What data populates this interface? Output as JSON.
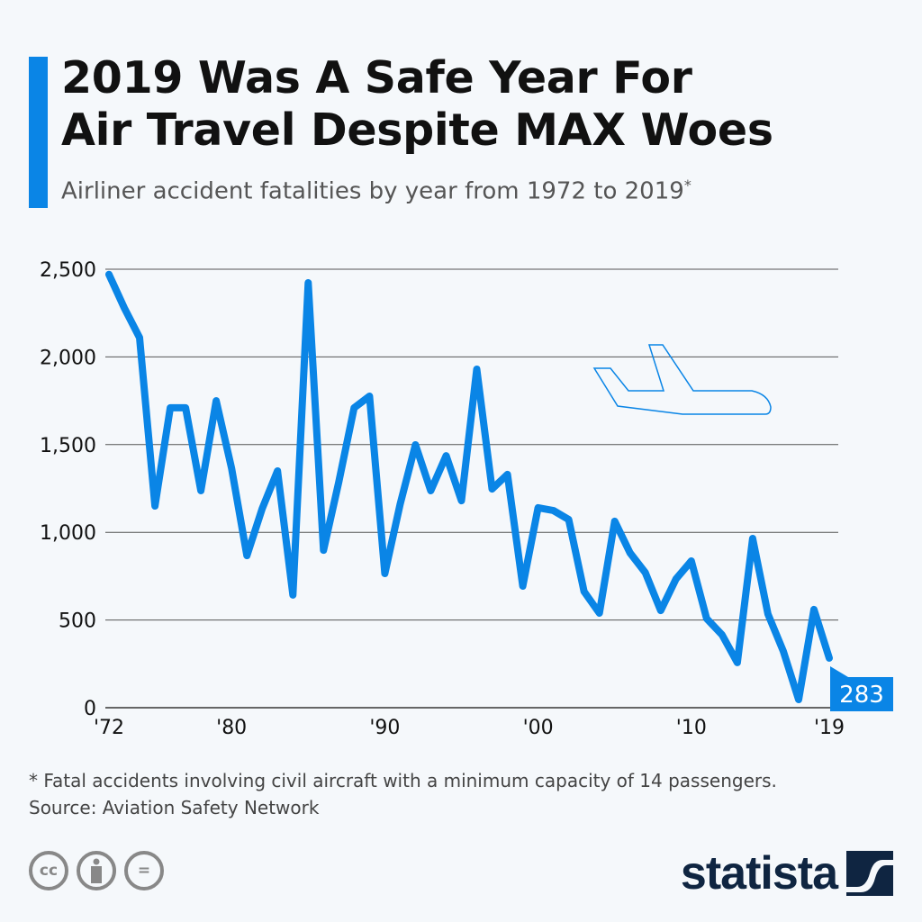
{
  "header": {
    "title_line1": "2019 Was A Safe Year For",
    "title_line2": "Air Travel Despite MAX Woes",
    "subtitle": "Airliner accident fatalities by year from 1972 to 2019",
    "subtitle_mark": "*"
  },
  "chart_data": {
    "type": "line",
    "title": "2019 Was A Safe Year For Air Travel Despite MAX Woes",
    "subtitle": "Airliner accident fatalities by year from 1972 to 2019*",
    "x": [
      1972,
      1973,
      1974,
      1975,
      1976,
      1977,
      1978,
      1979,
      1980,
      1981,
      1982,
      1983,
      1984,
      1985,
      1986,
      1987,
      1988,
      1989,
      1990,
      1991,
      1992,
      1993,
      1994,
      1995,
      1996,
      1997,
      1998,
      1999,
      2000,
      2001,
      2002,
      2003,
      2004,
      2005,
      2006,
      2007,
      2008,
      2009,
      2010,
      2011,
      2012,
      2013,
      2014,
      2015,
      2016,
      2017,
      2018,
      2019
    ],
    "values": [
      2470,
      2280,
      2110,
      1150,
      1710,
      1710,
      1237,
      1750,
      1365,
      867,
      1135,
      1350,
      642,
      2423,
      898,
      1288,
      1710,
      1776,
      765,
      1160,
      1499,
      1237,
      1437,
      1180,
      1930,
      1247,
      1330,
      693,
      1140,
      1124,
      1073,
      662,
      539,
      1063,
      883,
      770,
      554,
      734,
      837,
      508,
      416,
      257,
      965,
      534,
      323,
      46,
      560,
      283
    ],
    "ylim": [
      0,
      2500
    ],
    "yticks": [
      "0",
      "500",
      "1,000",
      "1,500",
      "2,000",
      "2,500"
    ],
    "ytick_values": [
      0,
      500,
      1000,
      1500,
      2000,
      2500
    ],
    "xticks": [
      "'72",
      "'80",
      "'90",
      "'00",
      "'10",
      "'19"
    ],
    "xtick_values": [
      1972,
      1980,
      1990,
      2000,
      2010,
      2019
    ],
    "grid": true,
    "last_value_label": "283",
    "line_color": "#0a85e6",
    "grid_color": "#555555"
  },
  "footer": {
    "note": "* Fatal accidents involving civil aircraft with a minimum capacity of 14 passengers.",
    "source": "Source: Aviation Safety Network",
    "license_icons": [
      "cc-icon",
      "attribution-icon",
      "no-derivatives-icon"
    ],
    "cc_text": "cc",
    "nd_text": "=",
    "logo": "statista",
    "logo_color": "#0f2541"
  },
  "colors": {
    "accent": "#0a85e6",
    "background": "#f5f8fb"
  }
}
